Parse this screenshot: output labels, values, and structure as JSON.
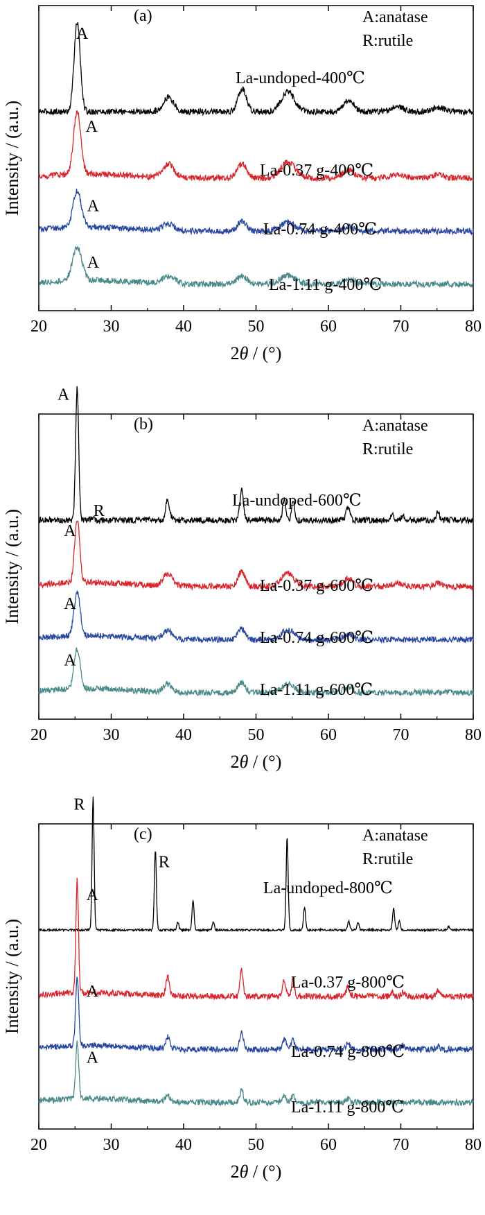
{
  "chart_data": [
    {
      "type": "line",
      "panel_label": "(a)",
      "xlabel_prefix": "2",
      "xlabel_theta": "θ",
      "xlabel_suffix": " / (°)",
      "ylabel": "Intensity / (a.u.)",
      "xlim": [
        20,
        80
      ],
      "x_ticks": [
        "20",
        "30",
        "40",
        "50",
        "60",
        "70",
        "80"
      ],
      "legend": [
        "A:anatase",
        "R:rutile"
      ],
      "series": [
        {
          "name": "La-undoped-400℃",
          "color": "#000000",
          "offset": 3.0,
          "peaks": [
            [
              25.3,
              1.35,
              0.6
            ],
            [
              37.9,
              0.22,
              1.0
            ],
            [
              48.1,
              0.35,
              0.8
            ],
            [
              54.4,
              0.3,
              1.3
            ],
            [
              62.8,
              0.17,
              1.0
            ],
            [
              69.5,
              0.08,
              1.2
            ],
            [
              75.2,
              0.07,
              1.0
            ]
          ],
          "markers": [
            {
              "text": "A",
              "x": 26.0
            }
          ]
        },
        {
          "name": "La-0.37 g-400℃",
          "color": "#d9252b",
          "offset": 2.0,
          "peaks": [
            [
              25.3,
              0.95,
              0.7
            ],
            [
              37.9,
              0.2,
              1.1
            ],
            [
              48.1,
              0.22,
              0.9
            ],
            [
              54.4,
              0.24,
              1.4
            ],
            [
              62.8,
              0.12,
              1.1
            ],
            [
              69.5,
              0.05,
              1.2
            ],
            [
              75.2,
              0.05,
              1.0
            ]
          ],
          "markers": [
            {
              "text": "A",
              "x": 27.3
            }
          ]
        },
        {
          "name": "La-0.74 g-400℃",
          "color": "#2746a0",
          "offset": 1.2,
          "peaks": [
            [
              25.3,
              0.55,
              0.8
            ],
            [
              37.9,
              0.1,
              1.1
            ],
            [
              48.1,
              0.14,
              0.9
            ],
            [
              54.4,
              0.13,
              1.4
            ],
            [
              62.8,
              0.07,
              1.1
            ]
          ],
          "markers": [
            {
              "text": "A",
              "x": 27.5
            }
          ]
        },
        {
          "name": "La-1.11 g-400℃",
          "color": "#4a8a8a",
          "offset": 0.4,
          "peaks": [
            [
              25.3,
              0.5,
              0.9
            ],
            [
              37.9,
              0.1,
              1.2
            ],
            [
              48.1,
              0.12,
              1.0
            ],
            [
              54.4,
              0.13,
              1.5
            ],
            [
              62.8,
              0.07,
              1.2
            ]
          ],
          "markers": [
            {
              "text": "A",
              "x": 27.5
            }
          ]
        }
      ]
    },
    {
      "type": "line",
      "panel_label": "(b)",
      "xlabel_prefix": "2",
      "xlabel_theta": "θ",
      "xlabel_suffix": " / (°)",
      "ylabel": "Intensity / (a.u.)",
      "xlim": [
        20,
        80
      ],
      "x_ticks": [
        "20",
        "30",
        "40",
        "50",
        "60",
        "70",
        "80"
      ],
      "legend": [
        "A:anatase",
        "R:rutile"
      ],
      "series": [
        {
          "name": "La-undoped-600℃",
          "color": "#000000",
          "offset": 3.0,
          "peaks": [
            [
              25.3,
              2.0,
              0.3
            ],
            [
              27.4,
              0.05,
              0.3
            ],
            [
              37.8,
              0.3,
              0.4
            ],
            [
              48.0,
              0.45,
              0.35
            ],
            [
              53.9,
              0.3,
              0.3
            ],
            [
              55.1,
              0.28,
              0.3
            ],
            [
              62.7,
              0.18,
              0.4
            ],
            [
              68.8,
              0.1,
              0.3
            ],
            [
              70.3,
              0.07,
              0.3
            ],
            [
              75.1,
              0.13,
              0.3
            ]
          ],
          "markers": [
            {
              "text": "A",
              "x": 23.4
            },
            {
              "text": "R",
              "x": 28.3
            }
          ]
        },
        {
          "name": "La-0.37 g-600℃",
          "color": "#d9252b",
          "offset": 2.0,
          "peaks": [
            [
              25.3,
              0.95,
              0.5
            ],
            [
              37.8,
              0.18,
              0.9
            ],
            [
              48.0,
              0.22,
              0.7
            ],
            [
              54.4,
              0.2,
              1.2
            ],
            [
              62.7,
              0.12,
              0.9
            ],
            [
              69.5,
              0.05,
              1.0
            ],
            [
              75.1,
              0.05,
              0.8
            ]
          ],
          "markers": [
            {
              "text": "A",
              "x": 24.3
            }
          ]
        },
        {
          "name": "La-0.74 g-600℃",
          "color": "#2746a0",
          "offset": 1.2,
          "peaks": [
            [
              25.3,
              0.65,
              0.6
            ],
            [
              37.8,
              0.12,
              0.9
            ],
            [
              48.0,
              0.16,
              0.7
            ],
            [
              54.4,
              0.15,
              1.2
            ],
            [
              62.7,
              0.08,
              0.9
            ]
          ],
          "markers": [
            {
              "text": "A",
              "x": 24.3
            }
          ]
        },
        {
          "name": "La-1.11 g-600℃",
          "color": "#4a8a8a",
          "offset": 0.4,
          "peaks": [
            [
              25.3,
              0.6,
              0.6
            ],
            [
              37.8,
              0.12,
              0.9
            ],
            [
              48.0,
              0.15,
              0.7
            ],
            [
              54.4,
              0.14,
              1.2
            ],
            [
              62.7,
              0.08,
              0.9
            ]
          ],
          "markers": [
            {
              "text": "A",
              "x": 24.3
            }
          ]
        }
      ]
    },
    {
      "type": "line",
      "panel_label": "(c)",
      "xlabel_prefix": "2",
      "xlabel_theta": "θ",
      "xlabel_suffix": " / (°)",
      "ylabel": "Intensity / (a.u.)",
      "xlim": [
        20,
        80
      ],
      "x_ticks": [
        "20",
        "30",
        "40",
        "50",
        "60",
        "70",
        "80"
      ],
      "legend": [
        "A:anatase",
        "R:rutile"
      ],
      "series": [
        {
          "name": "La-undoped-800℃",
          "color": "#000000",
          "offset": 3.0,
          "peaks": [
            [
              27.5,
              2.0,
              0.2
            ],
            [
              36.1,
              1.2,
              0.2
            ],
            [
              39.2,
              0.12,
              0.2
            ],
            [
              41.3,
              0.45,
              0.2
            ],
            [
              44.1,
              0.12,
              0.2
            ],
            [
              54.3,
              1.4,
              0.2
            ],
            [
              56.7,
              0.35,
              0.2
            ],
            [
              62.8,
              0.13,
              0.2
            ],
            [
              64.1,
              0.12,
              0.2
            ],
            [
              69.0,
              0.33,
              0.2
            ],
            [
              69.8,
              0.15,
              0.2
            ],
            [
              76.6,
              0.05,
              0.2
            ]
          ],
          "markers": [
            {
              "text": "R",
              "x": 25.6
            },
            {
              "text": "R",
              "x": 37.3
            }
          ]
        },
        {
          "name": "La-0.37 g-800℃",
          "color": "#d9252b",
          "offset": 2.0,
          "peaks": [
            [
              25.3,
              1.7,
              0.25
            ],
            [
              37.8,
              0.28,
              0.35
            ],
            [
              48.0,
              0.4,
              0.3
            ],
            [
              53.9,
              0.25,
              0.3
            ],
            [
              55.1,
              0.24,
              0.3
            ],
            [
              62.7,
              0.14,
              0.35
            ],
            [
              68.8,
              0.06,
              0.3
            ],
            [
              70.3,
              0.07,
              0.3
            ],
            [
              75.1,
              0.08,
              0.3
            ]
          ],
          "markers": [
            {
              "text": "A",
              "x": 27.4
            }
          ]
        },
        {
          "name": "La-0.74 g-800℃",
          "color": "#2746a0",
          "offset": 1.2,
          "peaks": [
            [
              25.3,
              1.05,
              0.3
            ],
            [
              37.8,
              0.18,
              0.4
            ],
            [
              48.0,
              0.26,
              0.35
            ],
            [
              53.9,
              0.15,
              0.35
            ],
            [
              55.1,
              0.14,
              0.35
            ],
            [
              62.7,
              0.09,
              0.4
            ],
            [
              70.3,
              0.05,
              0.4
            ],
            [
              75.1,
              0.05,
              0.35
            ]
          ],
          "markers": [
            {
              "text": "A",
              "x": 27.4
            }
          ]
        },
        {
          "name": "La-1.11 g-800℃",
          "color": "#4a8a8a",
          "offset": 0.4,
          "peaks": [
            [
              25.3,
              0.85,
              0.3
            ],
            [
              37.8,
              0.12,
              0.4
            ],
            [
              48.0,
              0.18,
              0.35
            ],
            [
              53.9,
              0.1,
              0.35
            ],
            [
              55.1,
              0.1,
              0.35
            ],
            [
              62.7,
              0.06,
              0.4
            ]
          ],
          "markers": [
            {
              "text": "A",
              "x": 27.4
            }
          ]
        }
      ]
    }
  ]
}
